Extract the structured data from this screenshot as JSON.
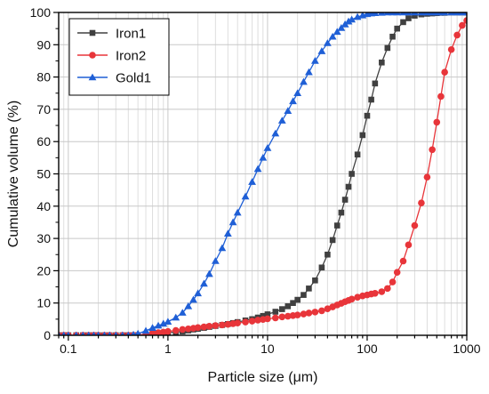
{
  "chart_data": {
    "type": "line",
    "title": "",
    "xlabel": "Particle size (μm)",
    "ylabel": "Cumulative volume (%)",
    "x_scale": "log",
    "xlim": [
      0.08,
      1000
    ],
    "ylim": [
      0,
      100
    ],
    "x_ticks": [
      0.1,
      1,
      10,
      100,
      1000
    ],
    "x_tick_labels": [
      "0.1",
      "1",
      "10",
      "100",
      "1000"
    ],
    "y_ticks": [
      0,
      10,
      20,
      30,
      40,
      50,
      60,
      70,
      80,
      90,
      100
    ],
    "y_tick_labels": [
      "0",
      "10",
      "20",
      "30",
      "40",
      "50",
      "60",
      "70",
      "80",
      "90",
      "100"
    ],
    "grid": true,
    "legend_position": "top-left",
    "series": [
      {
        "name": "Iron1",
        "color": "#404040",
        "marker": "square",
        "x": [
          0.08,
          0.09,
          0.1,
          0.12,
          0.14,
          0.16,
          0.18,
          0.2,
          0.23,
          0.26,
          0.3,
          0.35,
          0.4,
          0.45,
          0.5,
          0.6,
          0.7,
          0.8,
          0.9,
          1.0,
          1.2,
          1.4,
          1.6,
          1.8,
          2.0,
          2.3,
          2.6,
          3.0,
          3.5,
          4.0,
          4.5,
          5.0,
          6.0,
          7.0,
          8.0,
          9.0,
          10,
          12,
          14,
          16,
          18,
          20,
          23,
          26,
          30,
          35,
          40,
          45,
          50,
          55,
          60,
          65,
          70,
          80,
          90,
          100,
          110,
          120,
          140,
          160,
          180,
          200,
          230,
          260,
          300,
          350,
          400,
          450,
          500,
          550,
          600,
          700,
          800,
          900,
          1000
        ],
        "y": [
          0,
          0,
          0,
          0,
          0,
          0,
          0,
          0,
          0,
          0,
          0,
          0,
          0,
          0,
          0,
          0.2,
          0.4,
          0.5,
          0.6,
          0.8,
          1.0,
          1.2,
          1.5,
          1.8,
          2.0,
          2.3,
          2.6,
          2.9,
          3.2,
          3.5,
          3.8,
          4.1,
          4.6,
          5.0,
          5.5,
          6.0,
          6.5,
          7.3,
          8.1,
          9.0,
          10.0,
          11.0,
          12.5,
          14.5,
          17.0,
          21.0,
          25.0,
          29.5,
          34.0,
          38.0,
          42.0,
          46.0,
          50.0,
          56.0,
          62.0,
          68.0,
          73.0,
          78.0,
          84.5,
          89.0,
          92.5,
          95.0,
          97.0,
          98.2,
          99.0,
          99.4,
          99.6,
          99.7,
          99.8,
          99.9,
          99.9,
          100,
          100,
          100,
          100
        ]
      },
      {
        "name": "Iron2",
        "color": "#e8353a",
        "marker": "circle",
        "x": [
          0.08,
          0.09,
          0.1,
          0.12,
          0.14,
          0.16,
          0.18,
          0.2,
          0.23,
          0.26,
          0.3,
          0.35,
          0.4,
          0.45,
          0.5,
          0.6,
          0.7,
          0.8,
          0.9,
          1.0,
          1.2,
          1.4,
          1.6,
          1.8,
          2.0,
          2.3,
          2.6,
          3.0,
          3.5,
          4.0,
          4.5,
          5.0,
          6.0,
          7.0,
          8.0,
          9.0,
          10,
          12,
          14,
          16,
          18,
          20,
          23,
          26,
          30,
          35,
          40,
          45,
          50,
          55,
          60,
          65,
          70,
          80,
          90,
          100,
          110,
          120,
          140,
          160,
          180,
          200,
          230,
          260,
          300,
          350,
          400,
          450,
          500,
          550,
          600,
          700,
          800,
          900,
          1000
        ],
        "y": [
          0,
          0,
          0,
          0,
          0,
          0,
          0,
          0,
          0,
          0,
          0,
          0,
          0,
          0,
          0,
          0.3,
          0.6,
          0.8,
          1.0,
          1.2,
          1.5,
          1.8,
          2.0,
          2.2,
          2.4,
          2.6,
          2.8,
          3.0,
          3.2,
          3.4,
          3.6,
          3.8,
          4.1,
          4.4,
          4.7,
          4.9,
          5.1,
          5.4,
          5.7,
          5.9,
          6.1,
          6.3,
          6.6,
          6.9,
          7.2,
          7.6,
          8.2,
          8.8,
          9.4,
          9.9,
          10.4,
          10.8,
          11.2,
          11.8,
          12.2,
          12.5,
          12.8,
          13.0,
          13.5,
          14.5,
          16.5,
          19.5,
          23.0,
          28.0,
          34.0,
          41.0,
          49.0,
          57.5,
          66.0,
          74.0,
          81.5,
          88.5,
          93.0,
          96.0,
          97.5
        ]
      },
      {
        "name": "Gold1",
        "color": "#1f5fd6",
        "marker": "triangle",
        "x": [
          0.08,
          0.09,
          0.1,
          0.12,
          0.14,
          0.16,
          0.18,
          0.2,
          0.23,
          0.26,
          0.3,
          0.35,
          0.4,
          0.45,
          0.5,
          0.6,
          0.7,
          0.8,
          0.9,
          1.0,
          1.2,
          1.4,
          1.6,
          1.8,
          2.0,
          2.3,
          2.6,
          3.0,
          3.5,
          4.0,
          4.5,
          5.0,
          6.0,
          7.0,
          8.0,
          9.0,
          10,
          12,
          14,
          16,
          18,
          20,
          23,
          26,
          30,
          35,
          40,
          45,
          50,
          55,
          60,
          65,
          70,
          80,
          90,
          100,
          110,
          120,
          140,
          160,
          180,
          200,
          230,
          260,
          300,
          350,
          400,
          450,
          500,
          550,
          600,
          700,
          800,
          900,
          1000
        ],
        "y": [
          0,
          0,
          0,
          0,
          0,
          0,
          0,
          0,
          0,
          0,
          0,
          0,
          0,
          0.2,
          0.5,
          1.4,
          2.3,
          3.0,
          3.6,
          4.2,
          5.5,
          7.0,
          9.0,
          11.0,
          13.0,
          16.0,
          19.0,
          23.0,
          27.0,
          31.5,
          35.0,
          38.0,
          43.0,
          47.5,
          51.5,
          55.0,
          58.0,
          62.5,
          66.5,
          69.5,
          72.5,
          75.0,
          78.5,
          81.5,
          85.0,
          88.0,
          90.5,
          92.5,
          94.0,
          95.2,
          96.3,
          97.2,
          97.8,
          98.6,
          99.1,
          99.5,
          99.7,
          99.8,
          99.9,
          100,
          100,
          100,
          100,
          100,
          100,
          100,
          100,
          100,
          100,
          100,
          100,
          100,
          100,
          100,
          100
        ]
      }
    ]
  }
}
